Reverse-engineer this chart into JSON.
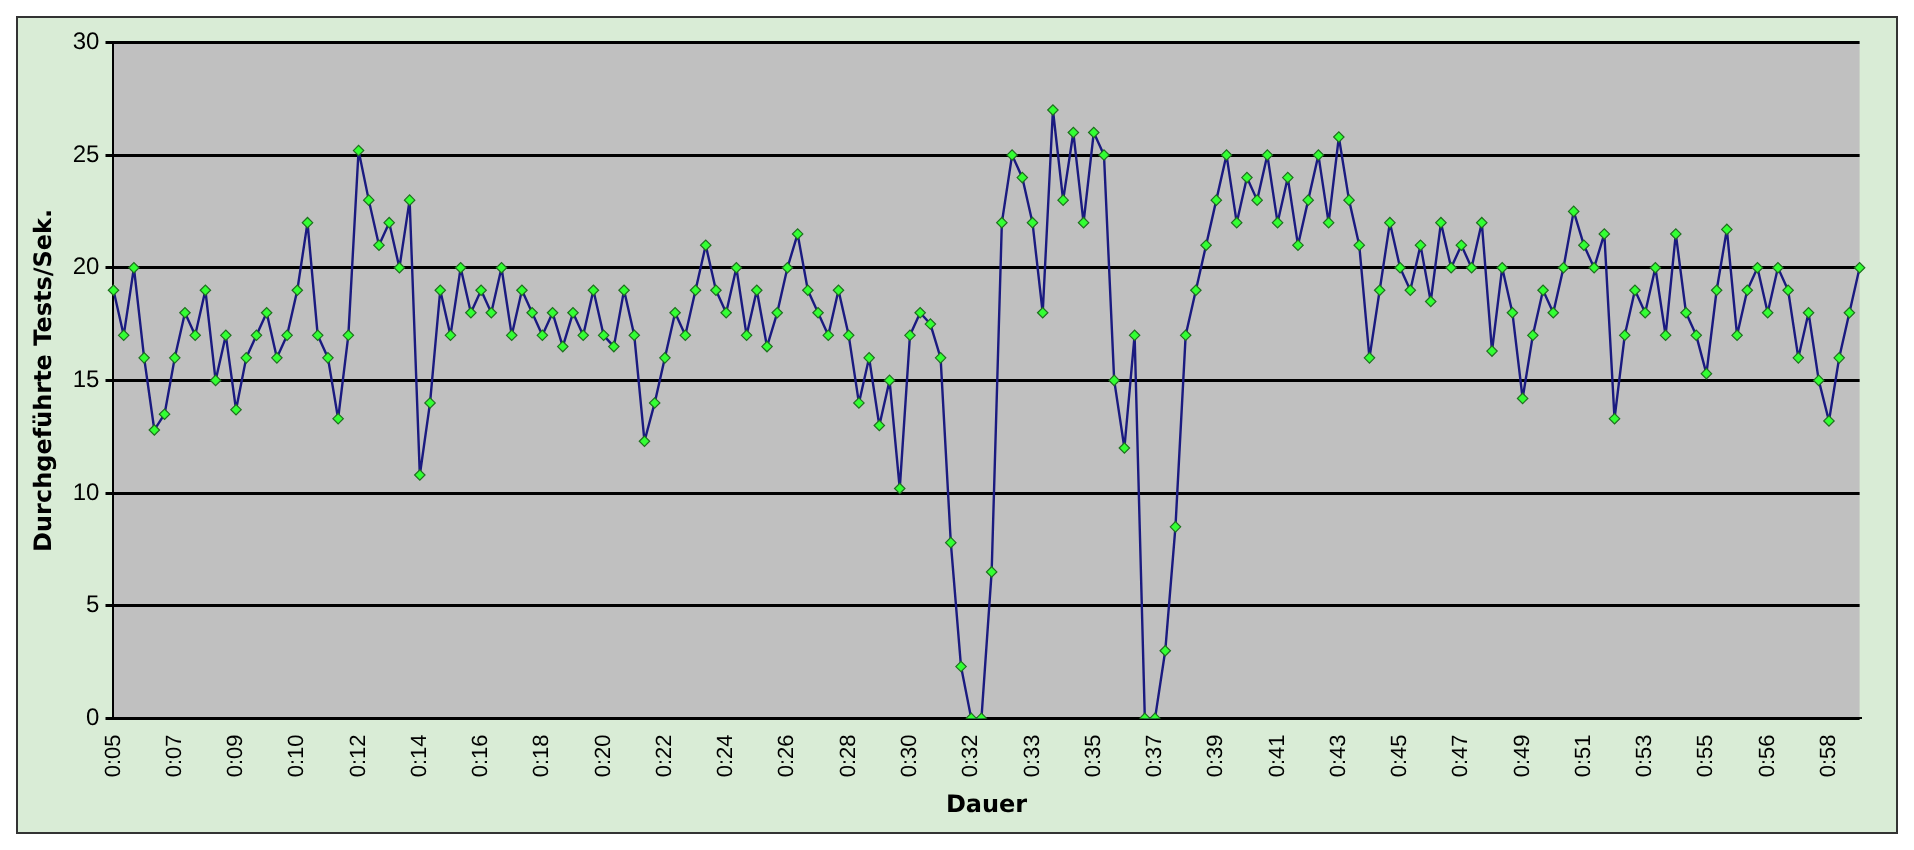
{
  "chart_data": {
    "type": "line",
    "xlabel": "Dauer",
    "ylabel": "Durchgeführte Tests/Sek.",
    "categories": [
      "0:05",
      null,
      null,
      null,
      null,
      null,
      "0:07",
      null,
      null,
      null,
      null,
      null,
      "0:09",
      null,
      null,
      null,
      null,
      null,
      "0:10",
      null,
      null,
      null,
      null,
      null,
      "0:12",
      null,
      null,
      null,
      null,
      null,
      "0:14",
      null,
      null,
      null,
      null,
      null,
      "0:16",
      null,
      null,
      null,
      null,
      null,
      "0:18",
      null,
      null,
      null,
      null,
      null,
      "0:20",
      null,
      null,
      null,
      null,
      null,
      "0:22",
      null,
      null,
      null,
      null,
      null,
      "0:24",
      null,
      null,
      null,
      null,
      null,
      "0:26",
      null,
      null,
      null,
      null,
      null,
      "0:28",
      null,
      null,
      null,
      null,
      null,
      "0:30",
      null,
      null,
      null,
      null,
      null,
      "0:32",
      null,
      null,
      null,
      null,
      null,
      "0:33",
      null,
      null,
      null,
      null,
      null,
      "0:35",
      null,
      null,
      null,
      null,
      null,
      "0:37",
      null,
      null,
      null,
      null,
      null,
      "0:39",
      null,
      null,
      null,
      null,
      null,
      "0:41",
      null,
      null,
      null,
      null,
      null,
      "0:43",
      null,
      null,
      null,
      null,
      null,
      "0:45",
      null,
      null,
      null,
      null,
      null,
      "0:47",
      null,
      null,
      null,
      null,
      null,
      "0:49",
      null,
      null,
      null,
      null,
      null,
      "0:51",
      null,
      null,
      null,
      null,
      null,
      "0:53",
      null,
      null,
      null,
      null,
      null,
      "0:55",
      null,
      null,
      null,
      null,
      null,
      "0:56",
      null,
      null,
      null,
      null,
      null,
      "0:58",
      null,
      null,
      null
    ],
    "series": [
      {
        "color": "#1a1a80",
        "values": [
          19,
          17,
          20,
          16,
          12.8,
          13.5,
          16,
          18,
          17,
          19,
          15,
          17,
          13.7,
          16,
          17,
          18,
          16,
          17,
          19,
          22,
          17,
          16,
          13.3,
          17,
          25.2,
          23,
          21,
          22,
          20,
          23,
          10.8,
          14,
          19,
          17,
          20,
          18,
          19,
          18,
          20,
          17,
          19,
          18,
          17,
          18,
          16.5,
          18,
          17,
          19,
          17,
          16.5,
          19,
          17,
          12.3,
          14,
          16,
          18,
          17,
          19,
          21,
          19,
          18,
          20,
          17,
          19,
          16.5,
          18,
          20,
          21.5,
          19,
          18,
          17,
          19,
          17,
          14,
          16,
          13,
          15,
          10.2,
          17,
          18,
          17.5,
          16,
          7.8,
          2.3,
          0,
          0,
          6.5,
          22,
          25,
          24,
          22,
          18,
          27,
          23,
          26,
          22,
          26,
          25,
          15,
          12,
          17,
          0,
          0,
          3,
          8.5,
          17,
          19,
          21,
          23,
          25,
          22,
          24,
          23,
          25,
          22,
          24,
          21,
          23,
          25,
          22,
          25.8,
          23,
          21,
          16,
          19,
          22,
          20,
          19,
          21,
          18.5,
          22,
          20,
          21,
          20,
          22,
          16.3,
          20,
          18,
          14.2,
          17,
          19,
          18,
          20,
          22.5,
          21,
          20,
          21.5,
          13.3,
          17,
          19,
          18,
          20,
          17,
          21.5,
          18,
          17,
          15.3,
          19,
          21.7,
          17,
          19,
          20,
          18,
          20,
          19,
          16,
          18,
          15,
          13.2,
          16,
          18,
          20
        ]
      }
    ],
    "ylim": [
      0,
      30
    ],
    "yticks": [
      0,
      5,
      10,
      15,
      20,
      25,
      30
    ],
    "grid": "y",
    "legend": false,
    "marker": "diamond",
    "line_style": "solid"
  }
}
